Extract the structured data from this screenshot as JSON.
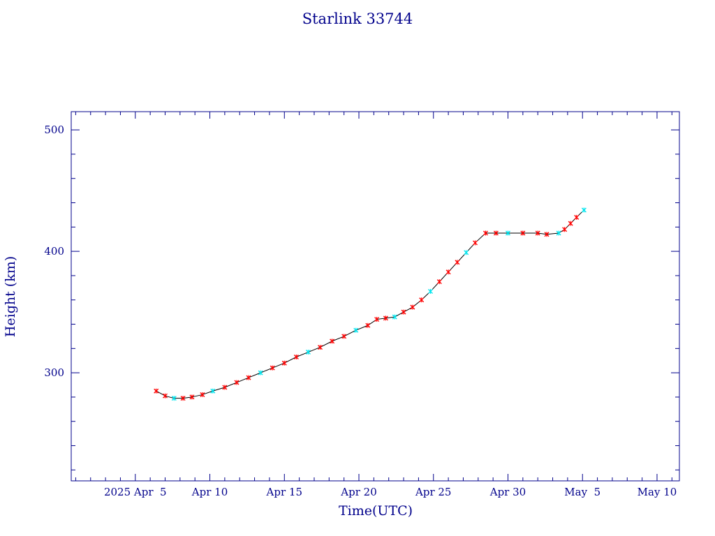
{
  "chart_data": {
    "type": "line",
    "title": "Starlink 33744",
    "xlabel": "Time(UTC)",
    "ylabel": "Height (km)",
    "x_tick_labels": [
      "2025 Apr  5",
      "Apr 10",
      "Apr 15",
      "Apr 20",
      "Apr 25",
      "Apr 30",
      "May  5",
      "May 10"
    ],
    "x_ticks_days": [
      5,
      10,
      15,
      20,
      25,
      30,
      35,
      40
    ],
    "xlim_days": [
      0.7,
      41.5
    ],
    "y_tick_labels": [
      "300",
      "400",
      "500"
    ],
    "y_ticks": [
      300,
      400,
      500
    ],
    "ylim": [
      211,
      515
    ],
    "grid": false,
    "colors": {
      "axis": "#00008b",
      "line": "#000000",
      "marker_primary": "#ff0000",
      "marker_secondary": "#00e5ee"
    },
    "series": [
      {
        "x": [
          6.4,
          7.0,
          7.6,
          8.2,
          8.8,
          9.5,
          10.2,
          11.0,
          11.8,
          12.6,
          13.4,
          14.2,
          15.0,
          15.8,
          16.6,
          17.4,
          18.2,
          19.0,
          19.8,
          20.6,
          21.2,
          21.8,
          22.4,
          23.0,
          23.6,
          24.2,
          24.8,
          25.4,
          26.0,
          26.6,
          27.2,
          27.8,
          28.5,
          29.2,
          30.0,
          31.0,
          32.0,
          32.6,
          33.4,
          33.8,
          34.2,
          34.6,
          35.1
        ],
        "y": [
          285,
          281,
          279,
          279,
          280,
          282,
          285,
          288,
          292,
          296,
          300,
          304,
          308,
          313,
          317,
          321,
          326,
          330,
          335,
          339,
          344,
          345,
          346,
          350,
          354,
          360,
          367,
          375,
          383,
          391,
          399,
          407,
          415,
          415,
          415,
          415,
          415,
          414,
          415,
          418,
          423,
          428,
          434
        ]
      }
    ]
  }
}
